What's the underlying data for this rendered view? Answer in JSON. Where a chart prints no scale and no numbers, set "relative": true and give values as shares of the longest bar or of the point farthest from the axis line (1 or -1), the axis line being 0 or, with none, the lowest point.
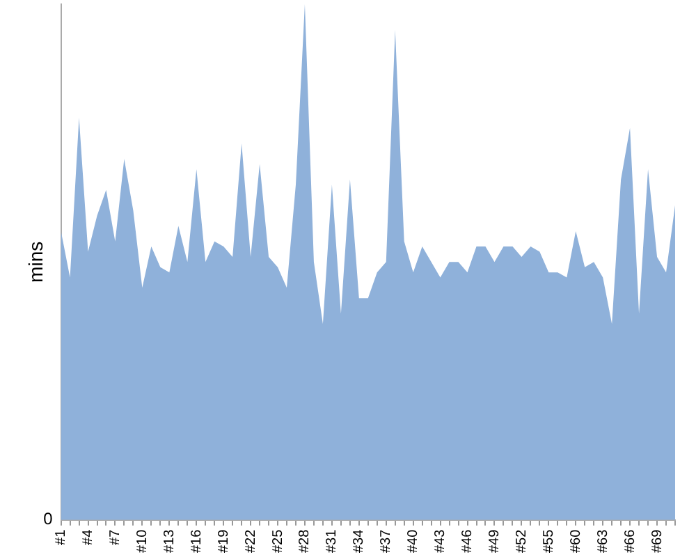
{
  "chart_data": {
    "type": "area",
    "ylabel": "mins",
    "relative": true,
    "annotations": [
      "0"
    ],
    "grid": false,
    "legend": false,
    "categories": [
      "#1",
      null,
      null,
      "#4",
      null,
      null,
      "#7",
      null,
      null,
      "#10",
      null,
      null,
      "#13",
      null,
      null,
      "#16",
      null,
      null,
      "#19",
      null,
      null,
      "#22",
      null,
      null,
      "#25",
      null,
      null,
      "#28",
      null,
      null,
      "#31",
      null,
      null,
      "#34",
      null,
      null,
      "#37",
      null,
      null,
      "#40",
      null,
      null,
      "#43",
      null,
      null,
      "#46",
      null,
      null,
      "#49",
      null,
      null,
      "#52",
      null,
      null,
      "#55",
      null,
      null,
      "#60",
      null,
      null,
      "#63",
      null,
      null,
      "#66",
      null,
      null,
      "#69",
      null,
      null
    ],
    "series": [
      {
        "color": "#8fb1da",
        "values": [
          0.56,
          0.47,
          0.78,
          0.52,
          0.59,
          0.64,
          0.54,
          0.7,
          0.6,
          0.45,
          0.53,
          0.49,
          0.48,
          0.57,
          0.5,
          0.68,
          0.5,
          0.54,
          0.53,
          0.51,
          0.73,
          0.51,
          0.69,
          0.51,
          0.49,
          0.45,
          0.65,
          1,
          0.5,
          0.38,
          0.65,
          0.4,
          0.66,
          0.43,
          0.43,
          0.48,
          0.5,
          0.95,
          0.54,
          0.48,
          0.53,
          0.5,
          0.47,
          0.5,
          0.5,
          0.48,
          0.53,
          0.53,
          0.5,
          0.53,
          0.53,
          0.51,
          0.53,
          0.52,
          0.48,
          0.48,
          0.47,
          0.56,
          0.49,
          0.5,
          0.47,
          0.38,
          0.66,
          0.76,
          0.4,
          0.68,
          0.51,
          0.48,
          0.61
        ]
      }
    ]
  }
}
